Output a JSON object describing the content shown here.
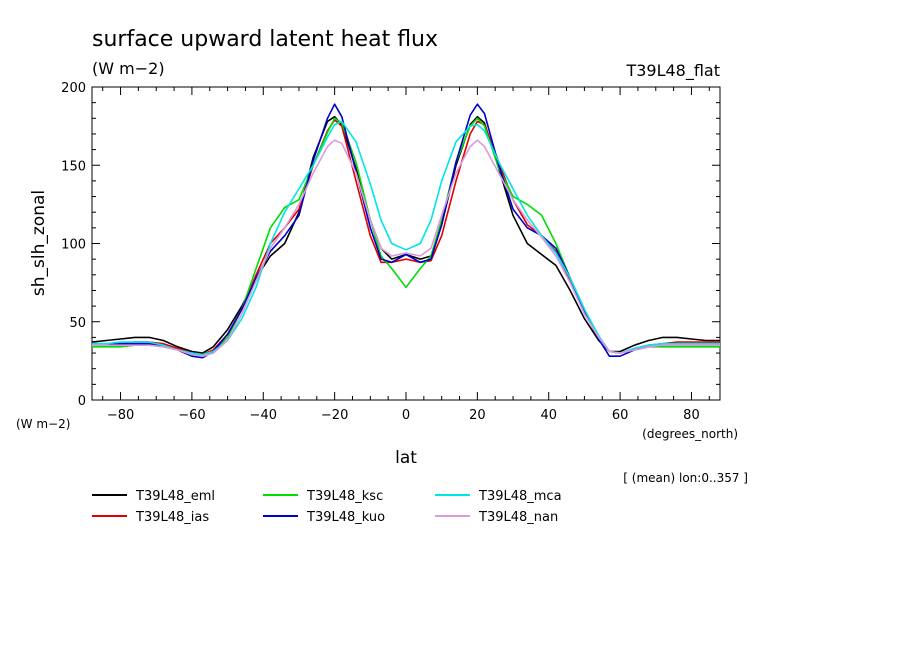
{
  "chart_data": {
    "type": "line",
    "title": "surface upward latent heat flux",
    "subtitle": "(W m−2)",
    "experiment_label": "T39L48_flat",
    "xlabel": "lat",
    "xunits": "(degrees_north)",
    "ylabel": "sh_slh_zonal",
    "yunits": "(W m−2)",
    "annotation": "[ (mean) lon:0..357 ]",
    "xlim": [
      -88,
      88
    ],
    "ylim": [
      0,
      200
    ],
    "xticks": [
      -80,
      -60,
      -40,
      -20,
      0,
      20,
      40,
      60,
      80
    ],
    "xtick_labels": [
      "−80",
      "−60",
      "−40",
      "−20",
      "0",
      "20",
      "40",
      "60",
      "80"
    ],
    "yticks": [
      0,
      50,
      100,
      150,
      200
    ],
    "ytick_labels": [
      "0",
      "50",
      "100",
      "150",
      "200"
    ],
    "grid": false,
    "legend_position": "bottom",
    "x": [
      -88,
      -84,
      -80,
      -76,
      -72,
      -68,
      -64,
      -60,
      -57,
      -54,
      -50,
      -46,
      -42,
      -38,
      -34,
      -30,
      -26,
      -22,
      -20,
      -18,
      -14,
      -10,
      -7,
      -4,
      0,
      4,
      7,
      10,
      14,
      18,
      20,
      22,
      26,
      30,
      34,
      38,
      42,
      46,
      50,
      54,
      57,
      60,
      64,
      68,
      72,
      76,
      80,
      84,
      88
    ],
    "series": [
      {
        "name": "T39L48_eml",
        "color": "#000000",
        "values": [
          37,
          38,
          39,
          40,
          40,
          38,
          34,
          31,
          30,
          34,
          45,
          60,
          78,
          92,
          100,
          120,
          155,
          178,
          181,
          176,
          148,
          115,
          97,
          90,
          93,
          90,
          92,
          112,
          150,
          176,
          181,
          177,
          148,
          118,
          100,
          93,
          86,
          70,
          52,
          38,
          31,
          31,
          35,
          38,
          40,
          40,
          39,
          38,
          38
        ]
      },
      {
        "name": "T39L48_ias",
        "color": "#e00000",
        "values": [
          36,
          36,
          36,
          37,
          37,
          36,
          33,
          30,
          29,
          32,
          42,
          58,
          80,
          100,
          110,
          122,
          150,
          172,
          179,
          175,
          140,
          105,
          88,
          88,
          90,
          88,
          89,
          105,
          140,
          170,
          178,
          176,
          152,
          128,
          112,
          105,
          95,
          76,
          56,
          40,
          31,
          30,
          33,
          35,
          36,
          37,
          37,
          37,
          37
        ]
      },
      {
        "name": "T39L48_ksc",
        "color": "#00dd00",
        "values": [
          34,
          34,
          34,
          35,
          35,
          34,
          32,
          30,
          29,
          31,
          40,
          58,
          84,
          110,
          123,
          128,
          150,
          171,
          180,
          177,
          152,
          115,
          92,
          84,
          72,
          84,
          92,
          115,
          152,
          175,
          180,
          175,
          148,
          130,
          125,
          118,
          100,
          78,
          58,
          40,
          31,
          30,
          32,
          34,
          34,
          34,
          34,
          34,
          34
        ]
      },
      {
        "name": "T39L48_kuo",
        "color": "#0000cc",
        "values": [
          35,
          35,
          36,
          36,
          36,
          35,
          32,
          28,
          27,
          31,
          42,
          58,
          78,
          95,
          105,
          118,
          153,
          180,
          189,
          181,
          146,
          110,
          90,
          88,
          93,
          88,
          90,
          112,
          152,
          182,
          189,
          183,
          150,
          122,
          110,
          105,
          97,
          78,
          56,
          39,
          28,
          28,
          32,
          34,
          35,
          35,
          35,
          35,
          35
        ]
      },
      {
        "name": "T39L48_mca",
        "color": "#00e5e5",
        "values": [
          36,
          36,
          37,
          37,
          37,
          35,
          32,
          30,
          29,
          31,
          38,
          52,
          72,
          100,
          120,
          135,
          150,
          168,
          176,
          178,
          165,
          138,
          115,
          100,
          96,
          100,
          115,
          140,
          165,
          175,
          176,
          172,
          152,
          135,
          118,
          105,
          94,
          78,
          58,
          41,
          31,
          30,
          33,
          35,
          36,
          36,
          36,
          36,
          36
        ]
      },
      {
        "name": "T39L48_nan",
        "color": "#dd99dd",
        "values": [
          35,
          35,
          35,
          35,
          35,
          34,
          32,
          29,
          28,
          30,
          38,
          55,
          76,
          97,
          110,
          125,
          145,
          162,
          166,
          164,
          145,
          115,
          97,
          92,
          94,
          92,
          97,
          118,
          145,
          162,
          166,
          162,
          145,
          128,
          115,
          104,
          92,
          75,
          55,
          40,
          31,
          30,
          32,
          34,
          35,
          35,
          35,
          35,
          35
        ]
      }
    ]
  }
}
